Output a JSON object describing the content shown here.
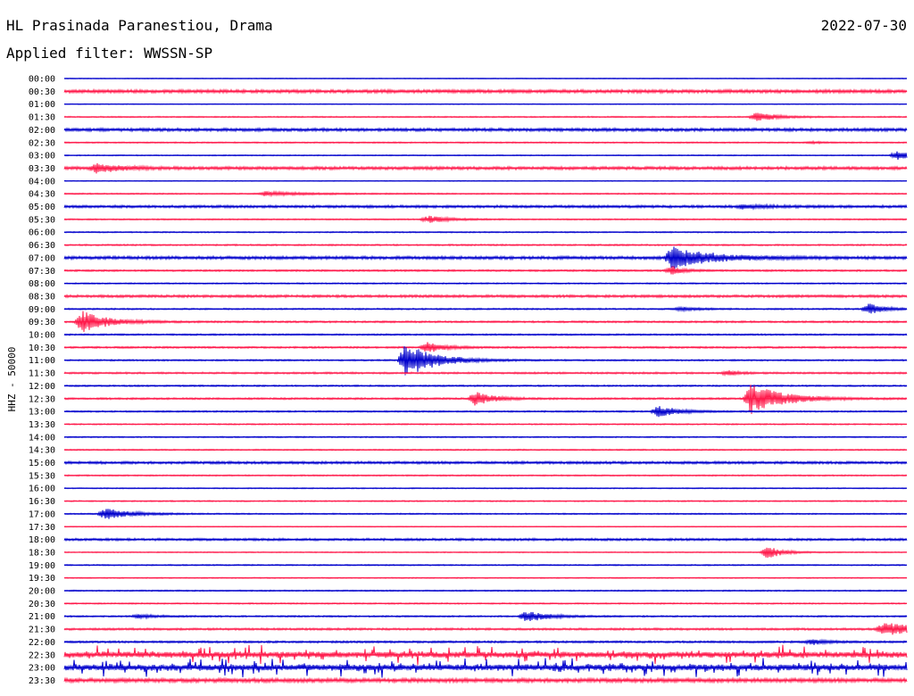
{
  "header": {
    "station": "HL Prasinada Paranestiou, Drama",
    "date": "2022-07-30",
    "filter": "Applied filter: WWSSN-SP"
  },
  "chart_data": {
    "type": "line",
    "ylabel": "HHZ - 50000",
    "title": "",
    "xlabel": "",
    "rows": [
      "00:00",
      "00:30",
      "01:00",
      "01:30",
      "02:00",
      "02:30",
      "03:00",
      "03:30",
      "04:00",
      "04:30",
      "05:00",
      "05:30",
      "06:00",
      "06:30",
      "07:00",
      "07:30",
      "08:00",
      "08:30",
      "09:00",
      "09:30",
      "10:00",
      "10:30",
      "11:00",
      "11:30",
      "12:00",
      "12:30",
      "13:00",
      "13:30",
      "14:00",
      "14:30",
      "15:00",
      "15:30",
      "16:00",
      "16:30",
      "17:00",
      "17:30",
      "18:00",
      "18:30",
      "19:00",
      "19:30",
      "20:00",
      "20:30",
      "21:00",
      "21:30",
      "22:00",
      "22:30",
      "23:00",
      "23:30"
    ],
    "colors": [
      "#0000cc",
      "#ff1a4b"
    ],
    "noise_levels": [
      0.3,
      1.3,
      0.3,
      0.5,
      1.2,
      0.5,
      0.4,
      1.2,
      0.3,
      0.5,
      1.0,
      0.5,
      0.5,
      0.6,
      1.2,
      0.7,
      0.5,
      1.0,
      0.6,
      0.7,
      0.6,
      0.7,
      0.6,
      0.7,
      0.6,
      0.7,
      0.6,
      0.5,
      0.5,
      0.5,
      1.0,
      0.5,
      0.4,
      0.5,
      0.5,
      0.3,
      0.9,
      0.4,
      0.5,
      0.4,
      0.5,
      0.5,
      0.6,
      0.8,
      0.8,
      2.2,
      2.2,
      1.6
    ],
    "events": [
      {
        "row": 3,
        "minute": 24.5,
        "amp": 5,
        "dur": 1.6
      },
      {
        "row": 5,
        "minute": 26.5,
        "amp": 1,
        "dur": 0.8
      },
      {
        "row": 6,
        "minute": 29.5,
        "amp": 5,
        "dur": 1.2
      },
      {
        "row": 7,
        "minute": 1,
        "amp": 5,
        "dur": 1.8
      },
      {
        "row": 9,
        "minute": 7,
        "amp": 2.5,
        "dur": 3
      },
      {
        "row": 10,
        "minute": 24,
        "amp": 2,
        "dur": 2
      },
      {
        "row": 11,
        "minute": 12.8,
        "amp": 4,
        "dur": 1.6
      },
      {
        "row": 14,
        "minute": 21.5,
        "amp": 12,
        "dur": 3
      },
      {
        "row": 15,
        "minute": 21.5,
        "amp": 5,
        "dur": 0.8
      },
      {
        "row": 18,
        "minute": 21.8,
        "amp": 2,
        "dur": 1.2
      },
      {
        "row": 18,
        "minute": 28.5,
        "amp": 6,
        "dur": 1.2
      },
      {
        "row": 19,
        "minute": 0.5,
        "amp": 12,
        "dur": 2
      },
      {
        "row": 21,
        "minute": 12.8,
        "amp": 7,
        "dur": 1.2
      },
      {
        "row": 22,
        "minute": 12,
        "amp": 20,
        "dur": 2.2
      },
      {
        "row": 23,
        "minute": 23.5,
        "amp": 3,
        "dur": 0.8
      },
      {
        "row": 25,
        "minute": 14.5,
        "amp": 8,
        "dur": 1.4
      },
      {
        "row": 25,
        "minute": 24.3,
        "amp": 18,
        "dur": 2.4
      },
      {
        "row": 26,
        "minute": 21,
        "amp": 6,
        "dur": 1.6
      },
      {
        "row": 34,
        "minute": 1.3,
        "amp": 6,
        "dur": 2
      },
      {
        "row": 37,
        "minute": 24.9,
        "amp": 7,
        "dur": 1.2
      },
      {
        "row": 42,
        "minute": 16.3,
        "amp": 6,
        "dur": 1.8
      },
      {
        "row": 42,
        "minute": 2.5,
        "amp": 2,
        "dur": 1.5
      },
      {
        "row": 43,
        "minute": 29,
        "amp": 7,
        "dur": 3
      },
      {
        "row": 44,
        "minute": 26.5,
        "amp": 3,
        "dur": 1
      }
    ],
    "spiky_rows": [
      45,
      46
    ]
  }
}
